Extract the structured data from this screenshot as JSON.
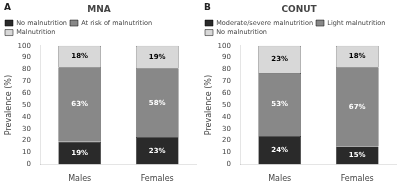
{
  "chart_data": [
    {
      "type": "bar",
      "title": "MNA",
      "annotations": [
        "A"
      ],
      "categories": [
        "Males",
        "Females"
      ],
      "series": [
        {
          "name": "No malnutrition",
          "color": "#2a2a2a",
          "values": [
            19,
            23
          ],
          "value_labels": [
            "19%",
            "23%"
          ]
        },
        {
          "name": "At risk of malnutrition",
          "color": "#888888",
          "values": [
            63,
            58
          ],
          "value_labels": [
            "63%",
            "58%"
          ]
        },
        {
          "name": "Malnutrition",
          "color": "#d8d8d8",
          "values": [
            18,
            19
          ],
          "value_labels": [
            "18%",
            "19%"
          ]
        }
      ],
      "ylabel": "Prevalence (%)",
      "ylim": [
        0,
        100
      ],
      "yticks": [
        0,
        10,
        20,
        30,
        40,
        50,
        60,
        70,
        80,
        90,
        100
      ],
      "stacked": true,
      "data_labels": true,
      "legend": "upper left",
      "grid": false
    },
    {
      "type": "bar",
      "title": "CONUT",
      "annotations": [
        "B"
      ],
      "categories": [
        "Males",
        "Females"
      ],
      "series": [
        {
          "name": "Moderate/severe malnutrition",
          "color": "#2a2a2a",
          "values": [
            24,
            15
          ],
          "value_labels": [
            "24%",
            "15%"
          ]
        },
        {
          "name": "Light malnutrition",
          "color": "#888888",
          "values": [
            53,
            67
          ],
          "value_labels": [
            "53%",
            "67%"
          ]
        },
        {
          "name": "No malnutrition",
          "color": "#d8d8d8",
          "values": [
            23,
            18
          ],
          "value_labels": [
            "23%",
            "18%"
          ]
        }
      ],
      "ylabel": "Prevalence (%)",
      "ylim": [
        0,
        100
      ],
      "yticks": [
        0,
        10,
        20,
        30,
        40,
        50,
        60,
        70,
        80,
        90,
        100
      ],
      "stacked": true,
      "data_labels": true,
      "legend": "upper left",
      "grid": false
    }
  ]
}
